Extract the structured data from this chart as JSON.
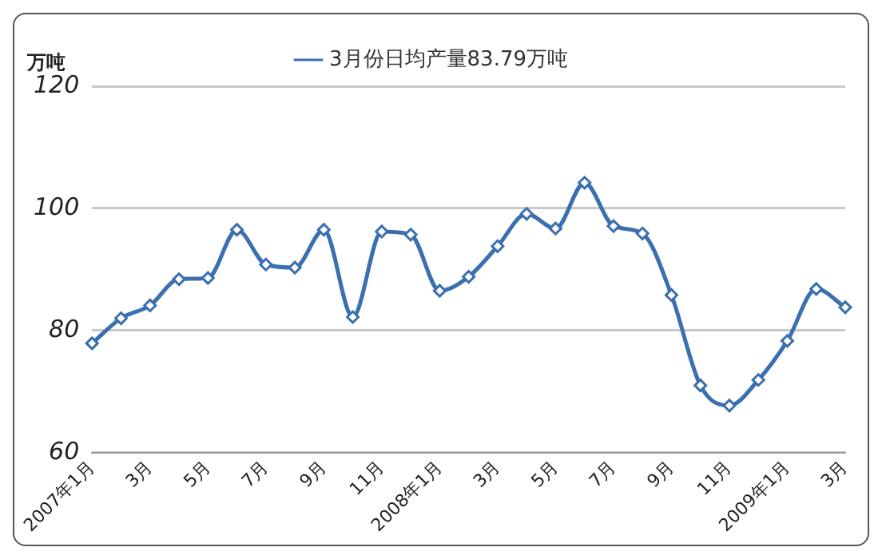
{
  "chart_data": {
    "type": "line",
    "ylabel": "万吨",
    "categories": [
      "2007年1月",
      null,
      "3月",
      null,
      "5月",
      null,
      "7月",
      null,
      "9月",
      null,
      "11月",
      null,
      "2008年1月",
      null,
      "3月",
      null,
      "5月",
      null,
      "7月",
      null,
      "9月",
      null,
      "11月",
      null,
      "2009年1月",
      null,
      "3月"
    ],
    "series": [
      {
        "name": "3月份日均产量83.79万吨",
        "color": "#3a6fb0",
        "values": [
          77.9,
          82.0,
          84.1,
          88.4,
          88.6,
          96.5,
          90.8,
          90.3,
          96.5,
          82.2,
          96.2,
          95.7,
          86.5,
          88.8,
          93.8,
          99.1,
          96.7,
          104.2,
          97.1,
          95.9,
          85.8,
          71.0,
          67.7,
          71.9,
          78.3,
          86.8,
          83.79
        ]
      }
    ],
    "ylim": [
      60,
      120
    ],
    "yticks": [
      60,
      80,
      100,
      120
    ],
    "grid": "y",
    "legend": "top",
    "marker": "diamond",
    "line_style": "solid"
  }
}
